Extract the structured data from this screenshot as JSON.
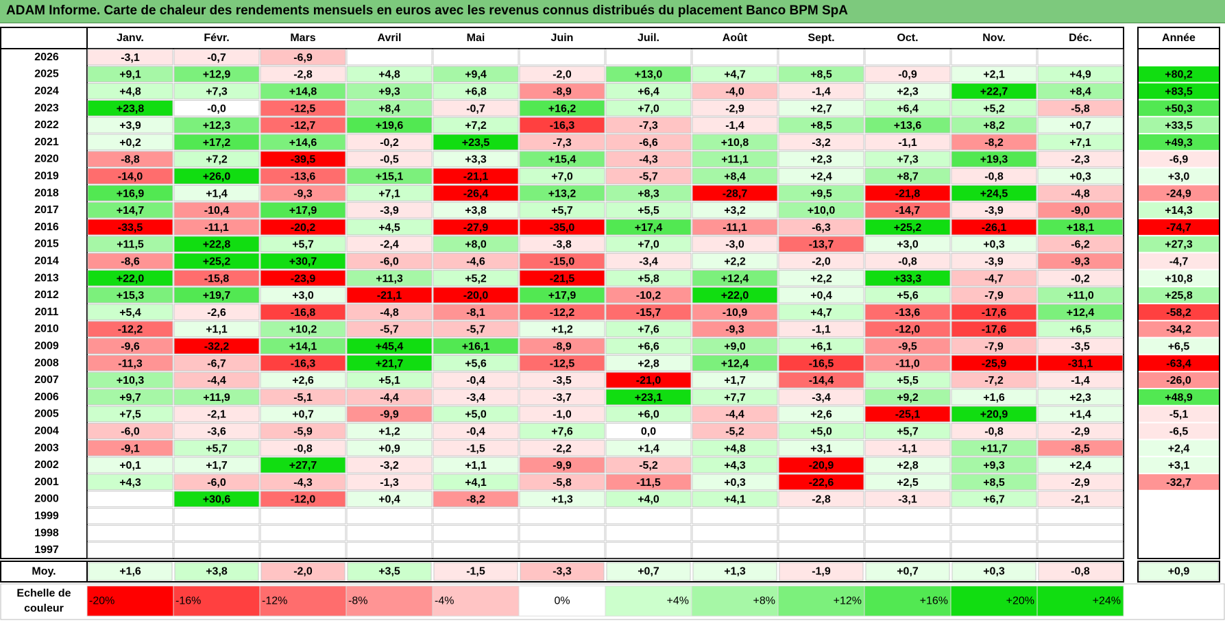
{
  "title": "ADAM Informe. Carte de chaleur des rendements mensuels en euros avec les revenus connus distribués du placement Banco BPM SpA",
  "chart_data": {
    "type": "heatmap",
    "months": [
      "Janv.",
      "Févr.",
      "Mars",
      "Avril",
      "Mai",
      "Juin",
      "Juil.",
      "Août",
      "Sept.",
      "Oct.",
      "Nov.",
      "Déc."
    ],
    "year_header": "Année",
    "avg_label": "Moy.",
    "rows": [
      {
        "year": "2026",
        "m": [
          "-3,1",
          "-0,7",
          "-6,9",
          "",
          "",
          "",
          "",
          "",
          "",
          "",
          "",
          ""
        ],
        "y": ""
      },
      {
        "year": "2025",
        "m": [
          "+9,1",
          "+12,9",
          "-2,8",
          "+4,8",
          "+9,4",
          "-2,0",
          "+13,0",
          "+4,7",
          "+8,5",
          "-0,9",
          "+2,1",
          "+4,9"
        ],
        "y": "+80,2"
      },
      {
        "year": "2024",
        "m": [
          "+4,8",
          "+7,3",
          "+14,8",
          "+9,3",
          "+6,8",
          "-8,9",
          "+6,4",
          "-4,0",
          "-1,4",
          "+2,3",
          "+22,7",
          "+8,4"
        ],
        "y": "+83,5"
      },
      {
        "year": "2023",
        "m": [
          "+23,8",
          "-0,0",
          "-12,5",
          "+8,4",
          "-0,7",
          "+16,2",
          "+7,0",
          "-2,9",
          "+2,7",
          "+6,4",
          "+5,2",
          "-5,8"
        ],
        "y": "+50,3"
      },
      {
        "year": "2022",
        "m": [
          "+3,9",
          "+12,3",
          "-12,7",
          "+19,6",
          "+7,2",
          "-16,3",
          "-7,3",
          "-1,4",
          "+8,5",
          "+13,6",
          "+8,2",
          "+0,7"
        ],
        "y": "+33,5"
      },
      {
        "year": "2021",
        "m": [
          "+0,2",
          "+17,2",
          "+14,6",
          "-0,2",
          "+23,5",
          "-7,3",
          "-6,6",
          "+10,8",
          "-3,2",
          "-1,1",
          "-8,2",
          "+7,1"
        ],
        "y": "+49,3"
      },
      {
        "year": "2020",
        "m": [
          "-8,8",
          "+7,2",
          "-39,5",
          "-0,5",
          "+3,3",
          "+15,4",
          "-4,3",
          "+11,1",
          "+2,3",
          "+7,3",
          "+19,3",
          "-2,3"
        ],
        "y": "-6,9"
      },
      {
        "year": "2019",
        "m": [
          "-14,0",
          "+26,0",
          "-13,6",
          "+15,1",
          "-21,1",
          "+7,0",
          "-5,7",
          "+8,4",
          "+2,4",
          "+8,7",
          "-0,8",
          "+0,3"
        ],
        "y": "+3,0"
      },
      {
        "year": "2018",
        "m": [
          "+16,9",
          "+1,4",
          "-9,3",
          "+7,1",
          "-26,4",
          "+13,2",
          "+8,3",
          "-28,7",
          "+9,5",
          "-21,8",
          "+24,5",
          "-4,8"
        ],
        "y": "-24,9"
      },
      {
        "year": "2017",
        "m": [
          "+14,7",
          "-10,4",
          "+17,9",
          "-3,9",
          "+3,8",
          "+5,7",
          "+5,5",
          "+3,2",
          "+10,0",
          "-14,7",
          "-3,9",
          "-9,0"
        ],
        "y": "+14,3"
      },
      {
        "year": "2016",
        "m": [
          "-33,5",
          "-11,1",
          "-20,2",
          "+4,5",
          "-27,9",
          "-35,0",
          "+17,4",
          "-11,1",
          "-6,3",
          "+25,2",
          "-26,1",
          "+18,1"
        ],
        "y": "-74,7"
      },
      {
        "year": "2015",
        "m": [
          "+11,5",
          "+22,8",
          "+5,7",
          "-2,4",
          "+8,0",
          "-3,8",
          "+7,0",
          "-3,0",
          "-13,7",
          "+3,0",
          "+0,3",
          "-6,2"
        ],
        "y": "+27,3"
      },
      {
        "year": "2014",
        "m": [
          "-8,6",
          "+25,2",
          "+30,7",
          "-6,0",
          "-4,6",
          "-15,0",
          "-3,4",
          "+2,2",
          "-2,0",
          "-0,8",
          "-3,9",
          "-9,3"
        ],
        "y": "-4,7"
      },
      {
        "year": "2013",
        "m": [
          "+22,0",
          "-15,8",
          "-23,9",
          "+11,3",
          "+5,2",
          "-21,5",
          "+5,8",
          "+12,4",
          "+2,2",
          "+33,3",
          "-4,7",
          "-0,2"
        ],
        "y": "+10,8"
      },
      {
        "year": "2012",
        "m": [
          "+15,3",
          "+19,7",
          "+3,0",
          "-21,1",
          "-20,0",
          "+17,9",
          "-10,2",
          "+22,0",
          "+0,4",
          "+5,6",
          "-7,9",
          "+11,0"
        ],
        "y": "+25,8"
      },
      {
        "year": "2011",
        "m": [
          "+5,4",
          "-2,6",
          "-16,8",
          "-4,8",
          "-8,1",
          "-12,2",
          "-15,7",
          "-10,9",
          "+4,7",
          "-13,6",
          "-17,6",
          "+12,4"
        ],
        "y": "-58,2"
      },
      {
        "year": "2010",
        "m": [
          "-12,2",
          "+1,1",
          "+10,2",
          "-5,7",
          "-5,7",
          "+1,2",
          "+7,6",
          "-9,3",
          "-1,1",
          "-12,0",
          "-17,6",
          "+6,5"
        ],
        "y": "-34,2"
      },
      {
        "year": "2009",
        "m": [
          "-9,6",
          "-32,2",
          "+14,1",
          "+45,4",
          "+16,1",
          "-8,9",
          "+6,6",
          "+9,0",
          "+6,1",
          "-9,5",
          "-7,9",
          "-3,5"
        ],
        "y": "+6,5"
      },
      {
        "year": "2008",
        "m": [
          "-11,3",
          "-6,7",
          "-16,3",
          "+21,7",
          "+5,6",
          "-12,5",
          "+2,8",
          "+12,4",
          "-16,5",
          "-11,0",
          "-25,9",
          "-31,1"
        ],
        "y": "-63,4"
      },
      {
        "year": "2007",
        "m": [
          "+10,3",
          "-4,4",
          "+2,6",
          "+5,1",
          "-0,4",
          "-3,5",
          "-21,0",
          "+1,7",
          "-14,4",
          "+5,5",
          "-7,2",
          "-1,4"
        ],
        "y": "-26,0"
      },
      {
        "year": "2006",
        "m": [
          "+9,7",
          "+11,9",
          "-5,1",
          "-4,4",
          "-3,4",
          "-3,7",
          "+23,1",
          "+7,7",
          "-3,4",
          "+9,2",
          "+1,6",
          "+2,3"
        ],
        "y": "+48,9"
      },
      {
        "year": "2005",
        "m": [
          "+7,5",
          "-2,1",
          "+0,7",
          "-9,9",
          "+5,0",
          "-1,0",
          "+6,0",
          "-4,4",
          "+2,6",
          "-25,1",
          "+20,9",
          "+1,4"
        ],
        "y": "-5,1"
      },
      {
        "year": "2004",
        "m": [
          "-6,0",
          "-3,6",
          "-5,9",
          "+1,2",
          "-0,4",
          "+7,6",
          "0,0",
          "-5,2",
          "+5,0",
          "+5,7",
          "-0,8",
          "-2,9"
        ],
        "y": "-6,5"
      },
      {
        "year": "2003",
        "m": [
          "-9,1",
          "+5,7",
          "-0,8",
          "+0,9",
          "-1,5",
          "-2,2",
          "+1,4",
          "+4,8",
          "+3,1",
          "-1,1",
          "+11,7",
          "-8,5"
        ],
        "y": "+2,4"
      },
      {
        "year": "2002",
        "m": [
          "+0,1",
          "+1,7",
          "+27,7",
          "-3,2",
          "+1,1",
          "-9,9",
          "-5,2",
          "+4,3",
          "-20,9",
          "+2,8",
          "+9,3",
          "+2,4"
        ],
        "y": "+3,1"
      },
      {
        "year": "2001",
        "m": [
          "+4,3",
          "-6,0",
          "-4,3",
          "-1,3",
          "+4,1",
          "-5,8",
          "-11,5",
          "+0,3",
          "-22,6",
          "+2,5",
          "+8,5",
          "-2,9"
        ],
        "y": "-32,7"
      },
      {
        "year": "2000",
        "m": [
          "",
          "+30,6",
          "-12,0",
          "+0,4",
          "-8,2",
          "+1,3",
          "+4,0",
          "+4,1",
          "-2,8",
          "-3,1",
          "+6,7",
          "-2,1"
        ],
        "y": ""
      },
      {
        "year": "1999",
        "m": [
          "",
          "",
          "",
          "",
          "",
          "",
          "",
          "",
          "",
          "",
          "",
          ""
        ],
        "y": ""
      },
      {
        "year": "1998",
        "m": [
          "",
          "",
          "",
          "",
          "",
          "",
          "",
          "",
          "",
          "",
          "",
          ""
        ],
        "y": ""
      },
      {
        "year": "1997",
        "m": [
          "",
          "",
          "",
          "",
          "",
          "",
          "",
          "",
          "",
          "",
          "",
          ""
        ],
        "y": ""
      }
    ],
    "averages": [
      "+1,6",
      "+3,8",
      "-2,0",
      "+3,5",
      "-1,5",
      "-3,3",
      "+0,7",
      "+1,3",
      "-1,9",
      "+0,7",
      "+0,3",
      "-0,8"
    ],
    "year_average": "+0,9",
    "scale_label": [
      "Echelle de",
      "couleur"
    ],
    "scale": [
      "-20%",
      "-16%",
      "-12%",
      "-8%",
      "-4%",
      "0%",
      "+4%",
      "+8%",
      "+12%",
      "+16%",
      "+20%",
      "+24%"
    ],
    "colors": {
      "negative": [
        "#ff0000",
        "#ff4040",
        "#ff6d6d",
        "#ff9494",
        "#ffc4c4",
        "#ffe6e6"
      ],
      "positive": [
        "#e6ffe6",
        "#ccffcc",
        "#a6f7a6",
        "#7cf07c",
        "#52e852",
        "#11dd11"
      ],
      "neutral": "#ffffff",
      "header_band": "#7dc97d"
    }
  }
}
